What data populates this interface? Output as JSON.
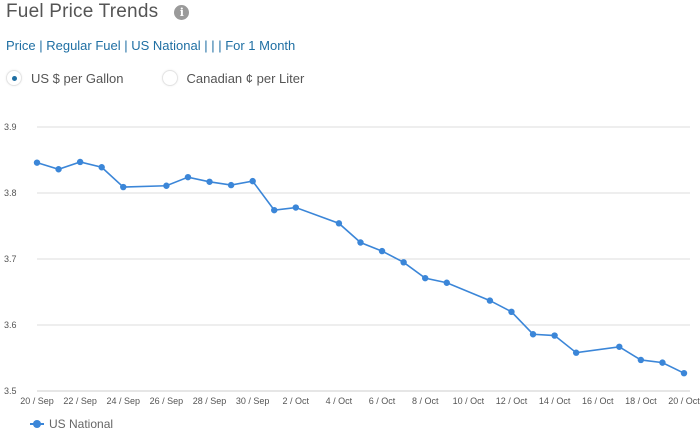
{
  "header": {
    "title": "Fuel Price Trends",
    "info_icon": "info-icon"
  },
  "subtitle": "Price | Regular Fuel | US National | | | For 1 Month",
  "units": {
    "options": [
      {
        "label": "US $ per Gallon",
        "selected": true
      },
      {
        "label": "Canadian ¢ per Liter",
        "selected": false
      }
    ]
  },
  "colors": {
    "series": "#3b86d8",
    "accent": "#1f6fa3",
    "grid": "#dddddd"
  },
  "chart_data": {
    "type": "line",
    "title": "",
    "xlabel": "",
    "ylabel": "",
    "ylim": [
      3.5,
      3.9
    ],
    "yticks": [
      "3.5",
      "3.6",
      "3.7",
      "3.8",
      "3.9"
    ],
    "xticks": [
      "20 / Sep",
      "22 / Sep",
      "24 / Sep",
      "26 / Sep",
      "28 / Sep",
      "30 / Sep",
      "2 / Oct",
      "4 / Oct",
      "6 / Oct",
      "8 / Oct",
      "10 / Oct",
      "12 / Oct",
      "14 / Oct",
      "16 / Oct",
      "18 / Oct",
      "20 / Oct"
    ],
    "grid": true,
    "legend": "bottom-left",
    "series": [
      {
        "name": "US National",
        "points": [
          [
            "2023-09-20",
            3.846
          ],
          [
            "2023-09-21",
            3.836
          ],
          [
            "2023-09-22",
            3.847
          ],
          [
            "2023-09-23",
            3.839
          ],
          [
            "2023-09-24",
            3.809
          ],
          [
            "2023-09-26",
            3.811
          ],
          [
            "2023-09-27",
            3.824
          ],
          [
            "2023-09-28",
            3.817
          ],
          [
            "2023-09-29",
            3.812
          ],
          [
            "2023-09-30",
            3.818
          ],
          [
            "2023-10-01",
            3.774
          ],
          [
            "2023-10-02",
            3.778
          ],
          [
            "2023-10-04",
            3.754
          ],
          [
            "2023-10-05",
            3.725
          ],
          [
            "2023-10-06",
            3.712
          ],
          [
            "2023-10-07",
            3.695
          ],
          [
            "2023-10-08",
            3.671
          ],
          [
            "2023-10-09",
            3.664
          ],
          [
            "2023-10-11",
            3.637
          ],
          [
            "2023-10-12",
            3.62
          ],
          [
            "2023-10-13",
            3.586
          ],
          [
            "2023-10-14",
            3.584
          ],
          [
            "2023-10-15",
            3.558
          ],
          [
            "2023-10-17",
            3.567
          ],
          [
            "2023-10-18",
            3.547
          ],
          [
            "2023-10-19",
            3.543
          ],
          [
            "2023-10-20",
            3.527
          ]
        ]
      }
    ]
  }
}
